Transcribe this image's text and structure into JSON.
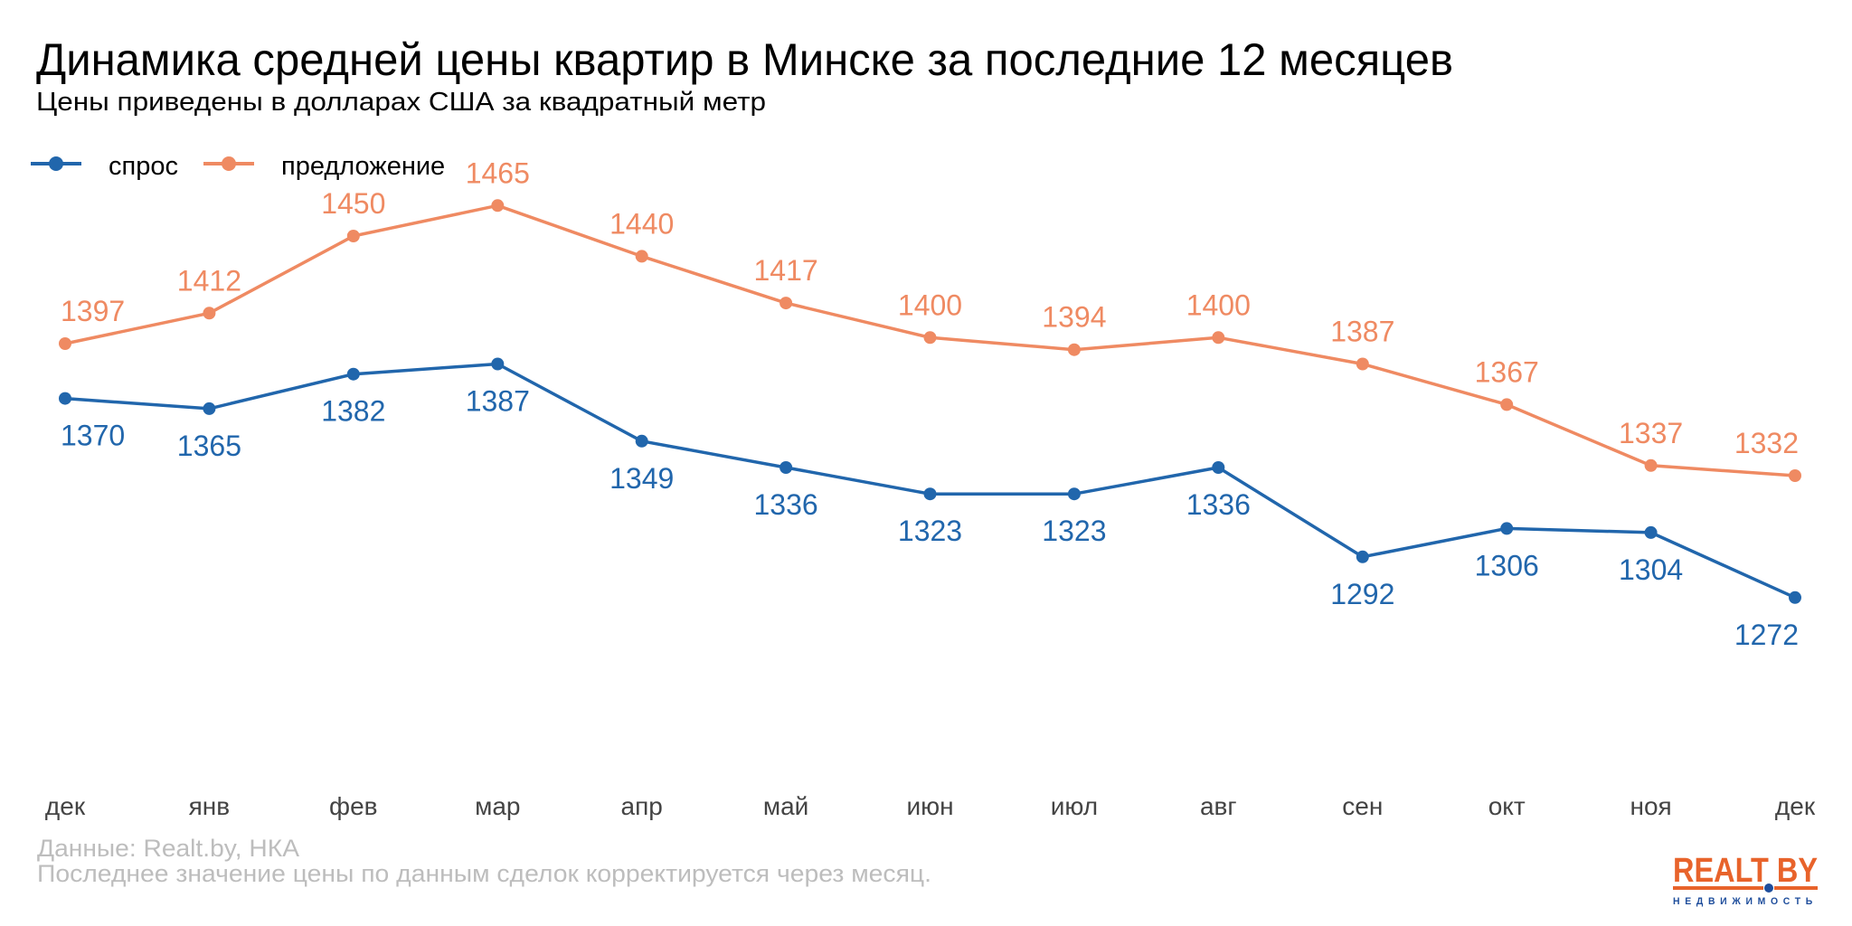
{
  "colors": {
    "demand": "#2166ac",
    "supply": "#ef8a62",
    "logo_orange": "#e8632b",
    "logo_blue": "#1f4e9c"
  },
  "logo": {
    "main": "REALT BY",
    "sub": "НЕДВИЖИМОСТЬ"
  },
  "chart_data": {
    "type": "line",
    "title": "Динамика средней цены квартир в Минске за последние 12 месяцев",
    "subtitle": "Цены приведены в долларах США за квадратный метр",
    "xlabel": "",
    "ylabel": "",
    "categories": [
      "дек",
      "янв",
      "фев",
      "мар",
      "апр",
      "май",
      "июн",
      "июл",
      "авг",
      "сен",
      "окт",
      "ноя",
      "дек"
    ],
    "series": [
      {
        "name": "спрос",
        "color_key": "demand",
        "label_position": "below",
        "values": [
          1370,
          1365,
          1382,
          1387,
          1349,
          1336,
          1323,
          1323,
          1336,
          1292,
          1306,
          1304,
          1272
        ]
      },
      {
        "name": "предложение",
        "color_key": "supply",
        "label_position": "above",
        "values": [
          1397,
          1412,
          1450,
          1465,
          1440,
          1417,
          1400,
          1394,
          1400,
          1387,
          1367,
          1337,
          1332
        ]
      }
    ],
    "ylim": [
      1180,
      1480
    ],
    "grid": false,
    "legend_position": "top-left",
    "caption": [
      "Данные: Realt.by, НКА",
      "Последнее значение цены по данным сделок корректируется через месяц."
    ]
  }
}
